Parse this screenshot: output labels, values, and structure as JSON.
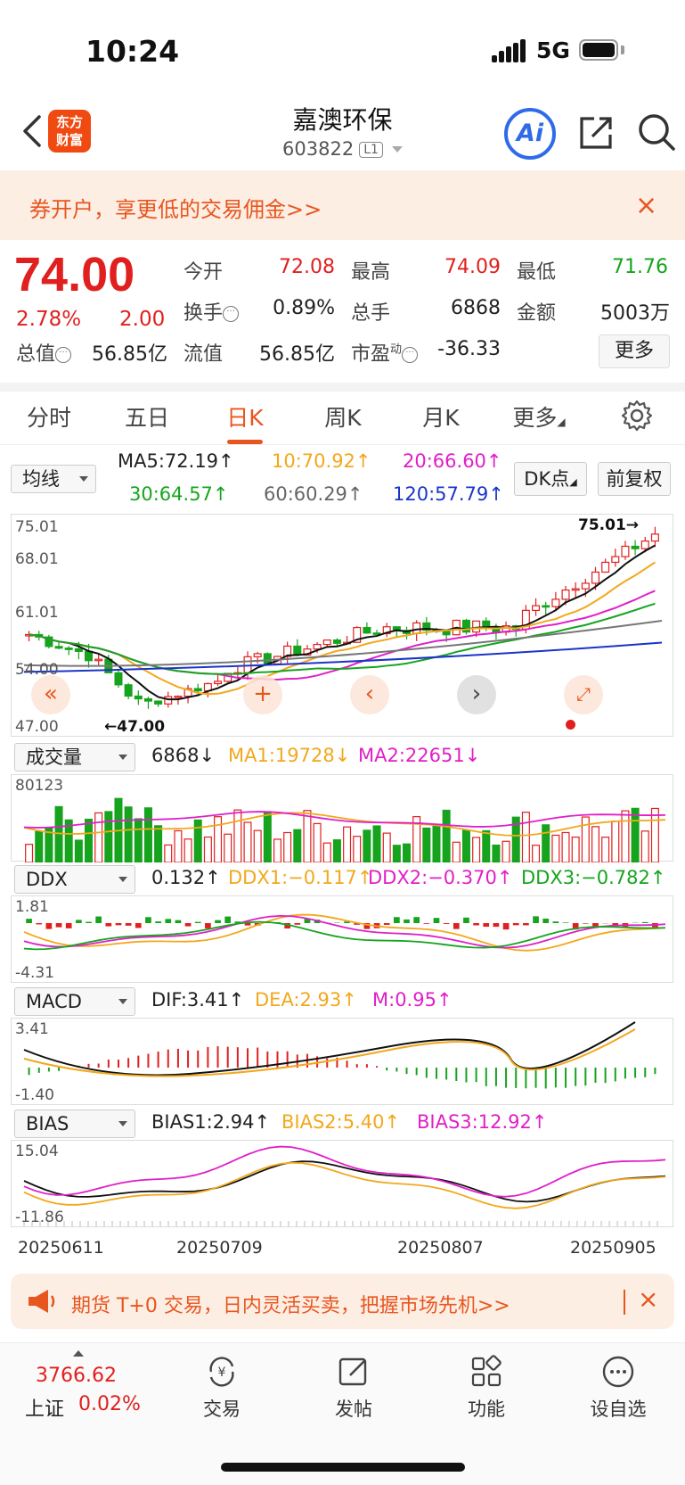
{
  "status": {
    "time": "10:24",
    "network": "5G"
  },
  "header": {
    "logo_line1": "东方",
    "logo_line2": "财富",
    "stock_name": "嘉澳环保",
    "stock_code": "603822",
    "level_badge": "L1",
    "ai_label": "Ai"
  },
  "promo": {
    "text": "券开户，享更低的交易佣金>>",
    "close": "×"
  },
  "quote": {
    "price": "74.00",
    "change_pct": "2.78%",
    "change_amt": "2.00",
    "open_label": "今开",
    "open": "72.08",
    "high_label": "最高",
    "high": "74.09",
    "low_label": "最低",
    "low": "71.76",
    "turnover_label": "换手",
    "turnover": "0.89%",
    "volume_label": "总手",
    "volume": "6868",
    "amount_label": "金额",
    "amount": "5003万",
    "mktcap_label": "总值",
    "mktcap": "56.85亿",
    "float_label": "流值",
    "float": "56.85亿",
    "pe_label": "市盈",
    "pe_sup": "动",
    "pe": "-36.33",
    "more": "更多"
  },
  "tabs": [
    "分时",
    "五日",
    "日K",
    "周K",
    "月K",
    "更多"
  ],
  "active_tab": "日K",
  "ma_bar": {
    "select": "均线",
    "ma5": "MA5:72.19↑",
    "ma10": "10:70.92↑",
    "ma20": "20:66.60↑",
    "ma30": "30:64.57↑",
    "ma60": "60:60.29↑",
    "ma120": "120:57.79↑",
    "dk": "DK点",
    "adjust": "前复权"
  },
  "kline": {
    "y_labels": [
      "75.01",
      "68.01",
      "61.01",
      "54.00",
      "47.00"
    ],
    "max_mark": "75.01→",
    "min_mark": "←47.00"
  },
  "volume": {
    "select": "成交量",
    "val": "6868↓",
    "ma1": "MA1:19728↓",
    "ma2": "MA2:22651↓",
    "y_top": "80123"
  },
  "ddx": {
    "select": "DDX",
    "val": "0.132↑",
    "ddx1": "DDX1:−0.117↑",
    "ddx2": "DDX2:−0.370↑",
    "ddx3": "DDX3:−0.782↑",
    "y_top": "1.81",
    "y_bottom": "-4.31"
  },
  "macd": {
    "select": "MACD",
    "dif": "DIF:3.41↑",
    "dea": "DEA:2.93↑",
    "m": "M:0.95↑",
    "y_top": "3.41",
    "y_bottom": "-1.40"
  },
  "bias": {
    "select": "BIAS",
    "b1": "BIAS1:2.94↑",
    "b2": "BIAS2:5.40↑",
    "b3": "BIAS3:12.92↑",
    "y_top": "15.04",
    "y_bottom": "-11.86"
  },
  "dates": [
    "20250611",
    "20250709",
    "20250807",
    "20250905"
  ],
  "bottom_banner": {
    "text": "期货 T+0 交易，日内灵活买卖，把握市场先机>>",
    "close": "×"
  },
  "tabbar": {
    "index_val": "3766.62",
    "index_name": "上证",
    "index_pct": "0.02%",
    "items": [
      "交易",
      "发帖",
      "功能",
      "设自选"
    ]
  },
  "colors": {
    "up": "#e0201f",
    "down": "#16a31d",
    "accent": "#e8561f",
    "ma5": "#111111",
    "ma10": "#f2a81c",
    "ma20": "#e01fc8",
    "ma30": "#17a51f",
    "ma60": "#777777",
    "ma120": "#1a35c7"
  }
}
